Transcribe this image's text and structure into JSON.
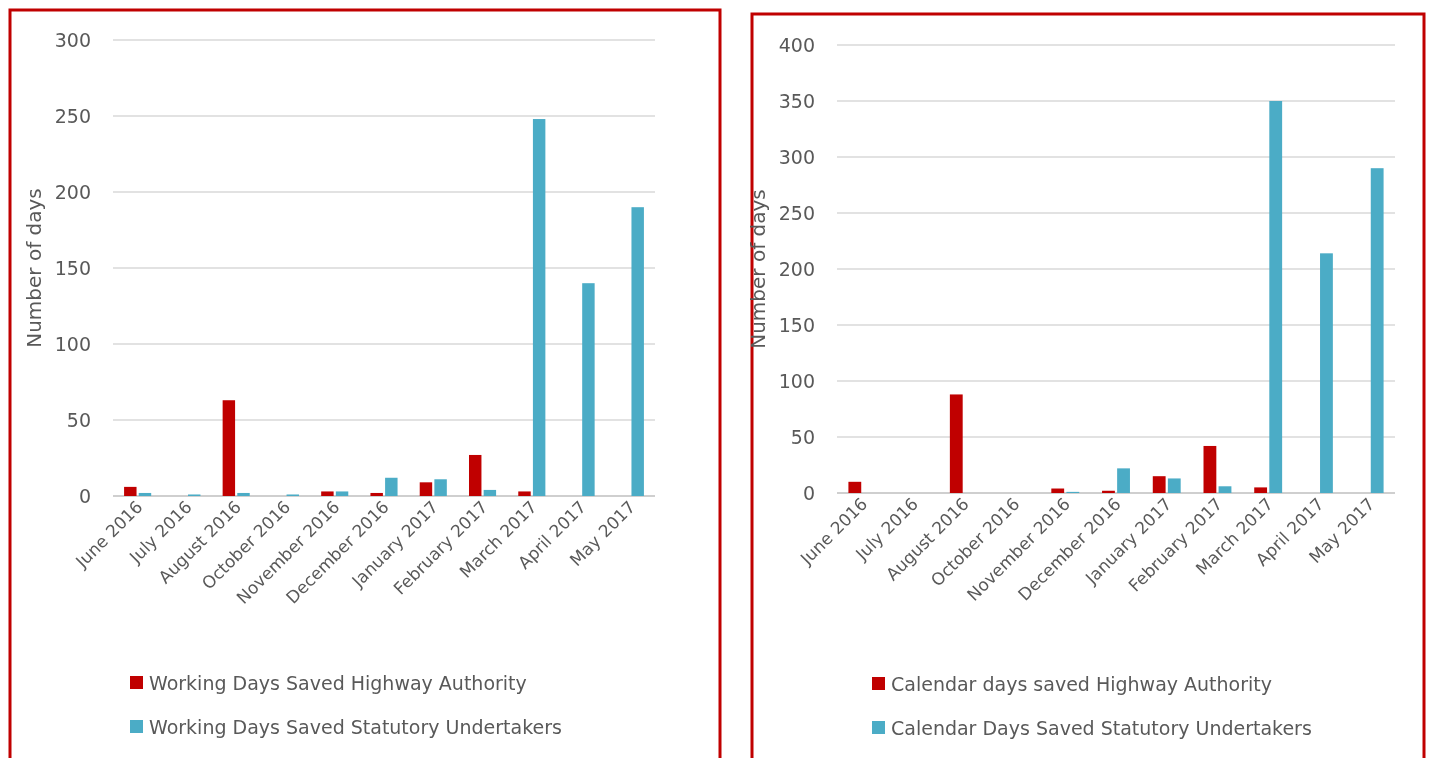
{
  "chart_data": [
    {
      "type": "bar",
      "ylabel": "Number of days",
      "categories": [
        "June 2016",
        "July 2016",
        "August 2016",
        "October 2016",
        "November 2016",
        "December 2016",
        "January 2017",
        "February 2017",
        "March 2017",
        "April 2017",
        "May 2017"
      ],
      "series": [
        {
          "name": "Working Days Saved Highway Authority",
          "color": "#c00000",
          "values": [
            6,
            0,
            63,
            0,
            3,
            2,
            9,
            27,
            3,
            0,
            0
          ]
        },
        {
          "name": "Working Days Saved Statutory Undertakers",
          "color": "#4bacc6",
          "values": [
            2,
            1,
            2,
            1,
            3,
            12,
            11,
            4,
            248,
            140,
            190
          ]
        }
      ],
      "ylim": [
        0,
        300
      ],
      "yticks": [
        0,
        50,
        100,
        150,
        200,
        250,
        300
      ],
      "grid": "y",
      "legend": "bottom"
    },
    {
      "type": "bar",
      "ylabel": "Number of days",
      "categories": [
        "June 2016",
        "July 2016",
        "August 2016",
        "October 2016",
        "November 2016",
        "December 2016",
        "January 2017",
        "February 2017",
        "March 2017",
        "April 2017",
        "May 2017"
      ],
      "series": [
        {
          "name": "Calendar days saved Highway  Authority",
          "color": "#c00000",
          "values": [
            10,
            0,
            88,
            0,
            4,
            2,
            15,
            42,
            5,
            0,
            0
          ]
        },
        {
          "name": "Calendar Days Saved Statutory Undertakers",
          "color": "#4bacc6",
          "values": [
            0,
            0,
            0,
            0,
            1,
            22,
            13,
            6,
            350,
            214,
            290
          ]
        }
      ],
      "ylim": [
        0,
        400
      ],
      "yticks": [
        0,
        50,
        100,
        150,
        200,
        250,
        300,
        350,
        400
      ],
      "grid": "y",
      "legend": "bottom"
    }
  ]
}
